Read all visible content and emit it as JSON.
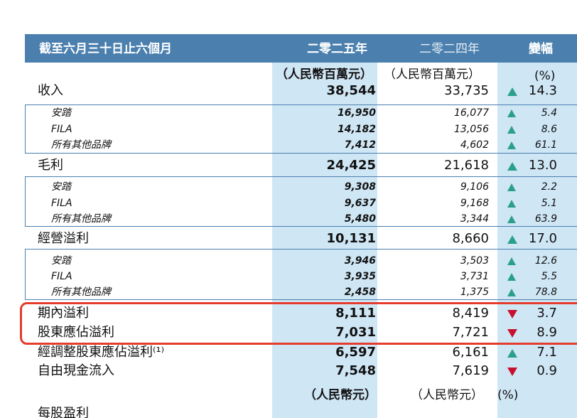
{
  "header": {
    "title": "截至六月三十日止六個月",
    "col_2025": "二零二五年",
    "col_2024": "二零二四年",
    "col_change": "變幅"
  },
  "units_top": {
    "u2025": "（人民幣百萬元）",
    "u2024": "（人民幣百萬元）",
    "pct": "(%)"
  },
  "rows": [
    {
      "label": "收入",
      "v2025": "38,544",
      "v2024": "33,735",
      "pct": "14.3",
      "trend": "up"
    },
    {
      "label": "安踏",
      "v2025": "16,950",
      "v2024": "16,077",
      "pct": "5.4",
      "trend": "up"
    },
    {
      "label": "FILA",
      "v2025": "14,182",
      "v2024": "13,056",
      "pct": "8.6",
      "trend": "up"
    },
    {
      "label": "所有其他品牌",
      "v2025": "7,412",
      "v2024": "4,602",
      "pct": "61.1",
      "trend": "up"
    },
    {
      "label": "毛利",
      "v2025": "24,425",
      "v2024": "21,618",
      "pct": "13.0",
      "trend": "up"
    },
    {
      "label": "安踏",
      "v2025": "9,308",
      "v2024": "9,106",
      "pct": "2.2",
      "trend": "up"
    },
    {
      "label": "FILA",
      "v2025": "9,637",
      "v2024": "9,168",
      "pct": "5.1",
      "trend": "up"
    },
    {
      "label": "所有其他品牌",
      "v2025": "5,480",
      "v2024": "3,344",
      "pct": "63.9",
      "trend": "up"
    },
    {
      "label": "經營溢利",
      "v2025": "10,131",
      "v2024": "8,660",
      "pct": "17.0",
      "trend": "up"
    },
    {
      "label": "安踏",
      "v2025": "3,946",
      "v2024": "3,503",
      "pct": "12.6",
      "trend": "up"
    },
    {
      "label": "FILA",
      "v2025": "3,935",
      "v2024": "3,731",
      "pct": "5.5",
      "trend": "up"
    },
    {
      "label": "所有其他品牌",
      "v2025": "2,458",
      "v2024": "1,375",
      "pct": "78.8",
      "trend": "up"
    },
    {
      "label": "期內溢利",
      "v2025": "8,111",
      "v2024": "8,419",
      "pct": "3.7",
      "trend": "down"
    },
    {
      "label": "股東應佔溢利",
      "v2025": "7,031",
      "v2024": "7,721",
      "pct": "8.9",
      "trend": "down"
    },
    {
      "label": "經調整股東應佔溢利⁽¹⁾",
      "v2025": "6,597",
      "v2024": "6,161",
      "pct": "7.1",
      "trend": "up"
    },
    {
      "label": "自由現金流入",
      "v2025": "7,548",
      "v2024": "7,619",
      "pct": "0.9",
      "trend": "down"
    }
  ],
  "units_bottom": {
    "u2025": "（人民幣元）",
    "u2024": "（人民幣元）",
    "pct": "(%)"
  },
  "eps_label": "每股盈利",
  "colors": {
    "header": "#4a7fae",
    "shade": "#cfe6f5",
    "up": "#2aa08c",
    "down": "#c8102e",
    "highlight": "#e53b2c"
  }
}
